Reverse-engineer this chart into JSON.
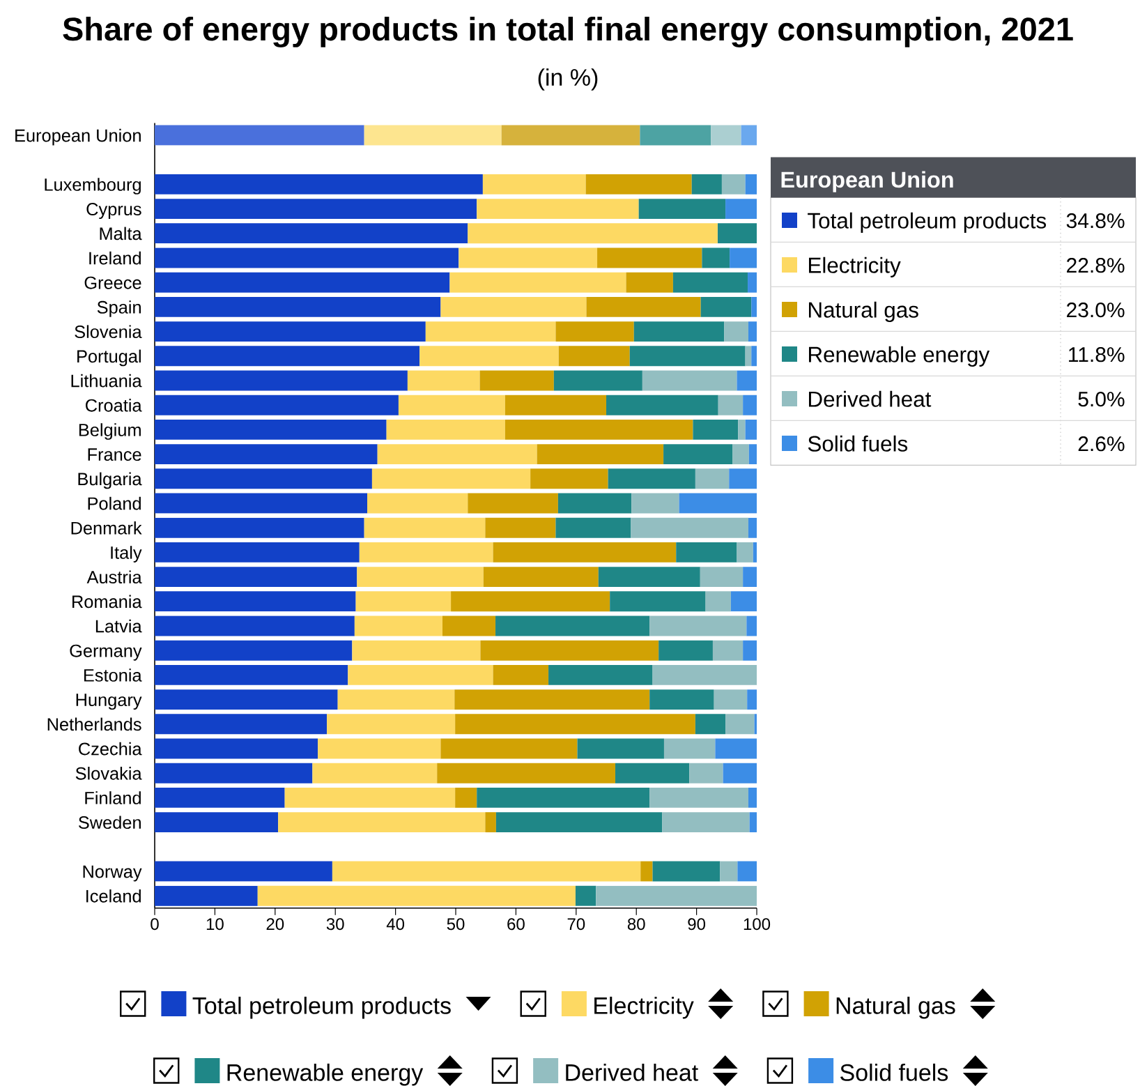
{
  "chart_data": {
    "type": "bar",
    "orientation": "horizontal",
    "stacked": true,
    "title": "Share of energy products in total final energy consumption, 2021",
    "subtitle": "(in %)",
    "categories": [
      "European Union",
      null,
      "Luxembourg",
      "Cyprus",
      "Malta",
      "Ireland",
      "Greece",
      "Spain",
      "Slovenia",
      "Portugal",
      "Lithuania",
      "Croatia",
      "Belgium",
      "France",
      "Bulgaria",
      "Poland",
      "Denmark",
      "Italy",
      "Austria",
      "Romania",
      "Latvia",
      "Germany",
      "Estonia",
      "Hungary",
      "Netherlands",
      "Czechia",
      "Slovakia",
      "Finland",
      "Sweden",
      null,
      "Norway",
      "Iceland"
    ],
    "series": [
      {
        "name": "Total petroleum products",
        "color": "#1241c8",
        "values": [
          34.8,
          null,
          54.5,
          53.5,
          52.0,
          50.5,
          49.0,
          47.5,
          45.0,
          44.0,
          42.0,
          40.5,
          38.5,
          37.0,
          36.1,
          35.3,
          34.8,
          34.0,
          33.6,
          33.4,
          33.2,
          32.8,
          32.1,
          30.4,
          28.6,
          27.1,
          26.2,
          21.6,
          20.5,
          null,
          29.5,
          17.1
        ],
        "colors": [
          "#4a70dc",
          null,
          "#1241c8",
          "#1241c8",
          "#1241c8",
          "#1241c8",
          "#1241c8",
          "#1241c8",
          "#1241c8",
          "#1241c8",
          "#1241c8",
          "#1241c8",
          "#1241c8",
          "#1241c8",
          "#1241c8",
          "#1241c8",
          "#1241c8",
          "#1241c8",
          "#1241c8",
          "#1241c8",
          "#1241c8",
          "#1241c8",
          "#1241c8",
          "#1241c8",
          "#1241c8",
          "#1241c8",
          "#1241c8",
          "#1241c8",
          "#1241c8",
          null,
          "#1241c8",
          "#1241c8"
        ]
      },
      {
        "name": "Electricity",
        "color": "#fdd963",
        "values": [
          22.8,
          null,
          17.1,
          26.9,
          41.5,
          23.0,
          29.3,
          24.2,
          21.6,
          23.1,
          12.0,
          17.7,
          19.7,
          26.5,
          26.3,
          16.7,
          20.1,
          22.2,
          21.0,
          15.8,
          14.6,
          21.3,
          24.1,
          19.4,
          21.3,
          20.4,
          20.7,
          28.3,
          34.4,
          null,
          51.2,
          52.8
        ],
        "colors": [
          "#fde58f",
          null,
          "#fdd963",
          "#fdd963",
          "#fdd963",
          "#fdd963",
          "#fdd963",
          "#fdd963",
          "#fdd963",
          "#fdd963",
          "#fdd963",
          "#fdd963",
          "#fdd963",
          "#fdd963",
          "#fdd963",
          "#fdd963",
          "#fdd963",
          "#fdd963",
          "#fdd963",
          "#fdd963",
          "#fdd963",
          "#fdd963",
          "#fdd963",
          "#fdd963",
          "#fdd963",
          "#fdd963",
          "#fdd963",
          "#fdd963",
          "#fdd963",
          null,
          "#fdd963",
          "#fdd963"
        ]
      },
      {
        "name": "Natural gas",
        "color": "#d1a204",
        "values": [
          23.0,
          null,
          17.6,
          null,
          null,
          17.4,
          7.8,
          19.0,
          13.0,
          11.8,
          12.3,
          16.8,
          31.2,
          21.0,
          12.9,
          15.0,
          11.7,
          30.4,
          19.1,
          26.4,
          8.8,
          29.6,
          9.2,
          32.4,
          39.9,
          22.7,
          29.6,
          3.6,
          1.8,
          null,
          2.0,
          null
        ],
        "colors": [
          "#d6b23c",
          null,
          "#d1a204",
          "#d1a204",
          "#d1a204",
          "#d1a204",
          "#d1a204",
          "#d1a204",
          "#d1a204",
          "#d1a204",
          "#d1a204",
          "#d1a204",
          "#d1a204",
          "#d1a204",
          "#d1a204",
          "#d1a204",
          "#d1a204",
          "#d1a204",
          "#d1a204",
          "#d1a204",
          "#d1a204",
          "#d1a204",
          "#d1a204",
          "#d1a204",
          "#d1a204",
          "#d1a204",
          "#d1a204",
          "#d1a204",
          "#d1a204",
          null,
          "#d1a204",
          "#d1a204"
        ]
      },
      {
        "name": "Renewable energy",
        "color": "#1f8787",
        "values": [
          11.8,
          null,
          5.0,
          14.4,
          6.5,
          4.6,
          12.4,
          8.4,
          15.0,
          19.2,
          14.7,
          18.6,
          7.5,
          11.5,
          14.5,
          12.2,
          12.5,
          10.1,
          16.9,
          15.9,
          25.6,
          9.0,
          17.3,
          10.7,
          5.0,
          14.4,
          12.3,
          28.7,
          27.6,
          null,
          11.2,
          3.4
        ],
        "colors": [
          "#4da3a3",
          null,
          "#1f8787",
          "#1f8787",
          "#1f8787",
          "#1f8787",
          "#1f8787",
          "#1f8787",
          "#1f8787",
          "#1f8787",
          "#1f8787",
          "#1f8787",
          "#1f8787",
          "#1f8787",
          "#1f8787",
          "#1f8787",
          "#1f8787",
          "#1f8787",
          "#1f8787",
          "#1f8787",
          "#1f8787",
          "#1f8787",
          "#1f8787",
          "#1f8787",
          "#1f8787",
          "#1f8787",
          "#1f8787",
          "#1f8787",
          "#1f8787",
          null,
          "#1f8787",
          "#1f8787"
        ]
      },
      {
        "name": "Derived heat",
        "color": "#93bec1",
        "values": [
          5.0,
          null,
          3.9,
          null,
          null,
          null,
          null,
          null,
          4.0,
          1.0,
          15.7,
          4.1,
          1.2,
          2.7,
          5.6,
          7.9,
          19.5,
          2.7,
          7.1,
          4.2,
          16.1,
          5.0,
          17.3,
          5.5,
          4.8,
          8.5,
          5.6,
          16.4,
          14.5,
          null,
          2.9,
          26.7
        ],
        "colors": [
          "#abcfd1",
          null,
          "#93bec1",
          "#93bec1",
          "#93bec1",
          "#93bec1",
          "#93bec1",
          "#93bec1",
          "#93bec1",
          "#93bec1",
          "#93bec1",
          "#93bec1",
          "#93bec1",
          "#93bec1",
          "#93bec1",
          "#93bec1",
          "#93bec1",
          "#93bec1",
          "#93bec1",
          "#93bec1",
          "#93bec1",
          "#93bec1",
          "#93bec1",
          "#93bec1",
          "#93bec1",
          "#93bec1",
          "#93bec1",
          "#93bec1",
          "#93bec1",
          null,
          "#93bec1",
          "#93bec1"
        ]
      },
      {
        "name": "Solid fuels",
        "color": "#3c8de6",
        "values": [
          2.6,
          null,
          1.9,
          5.2,
          null,
          4.5,
          1.5,
          0.9,
          1.4,
          0.9,
          3.3,
          2.3,
          1.9,
          1.3,
          4.6,
          12.9,
          1.4,
          0.6,
          2.3,
          4.3,
          1.7,
          2.3,
          null,
          1.6,
          0.4,
          6.9,
          5.6,
          1.4,
          1.2,
          null,
          3.2,
          null
        ],
        "colors": [
          "#6aa8ee",
          null,
          "#3c8de6",
          "#3c8de6",
          "#3c8de6",
          "#3c8de6",
          "#3c8de6",
          "#3c8de6",
          "#3c8de6",
          "#3c8de6",
          "#3c8de6",
          "#3c8de6",
          "#3c8de6",
          "#3c8de6",
          "#3c8de6",
          "#3c8de6",
          "#3c8de6",
          "#3c8de6",
          "#3c8de6",
          "#3c8de6",
          "#3c8de6",
          "#3c8de6",
          "#3c8de6",
          "#3c8de6",
          "#3c8de6",
          "#3c8de6",
          "#3c8de6",
          "#3c8de6",
          "#3c8de6",
          null,
          "#3c8de6",
          "#3c8de6"
        ]
      }
    ],
    "xlim": [
      0,
      100
    ],
    "xticks": [
      0,
      10,
      20,
      30,
      40,
      50,
      60,
      70,
      80,
      90,
      100
    ],
    "legend": "bottom",
    "annotations": [
      "European Union",
      "34.8%",
      "22.8%",
      "23.0%",
      "11.8%",
      "5.0%",
      "2.6%"
    ]
  }
}
